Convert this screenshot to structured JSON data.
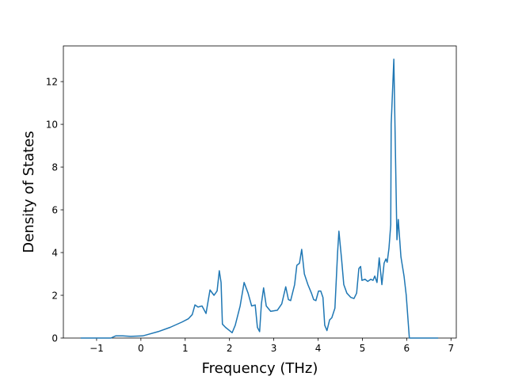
{
  "chart_data": {
    "type": "line",
    "xlabel": "Frequency (THz)",
    "ylabel": "Density of States",
    "x": [
      -1.36,
      -0.68,
      -0.57,
      -0.41,
      -0.23,
      0.04,
      0.13,
      0.39,
      0.66,
      0.93,
      1.07,
      1.16,
      1.22,
      1.29,
      1.38,
      1.47,
      1.56,
      1.65,
      1.72,
      1.77,
      1.81,
      1.84,
      1.91,
      2.0,
      2.06,
      2.13,
      2.24,
      2.33,
      2.42,
      2.5,
      2.58,
      2.63,
      2.68,
      2.72,
      2.77,
      2.83,
      2.93,
      3.08,
      3.18,
      3.27,
      3.33,
      3.38,
      3.47,
      3.52,
      3.58,
      3.63,
      3.69,
      3.77,
      3.85,
      3.9,
      3.95,
      4.01,
      4.06,
      4.11,
      4.15,
      4.2,
      4.26,
      4.31,
      4.38,
      4.44,
      4.47,
      4.53,
      4.58,
      4.65,
      4.74,
      4.81,
      4.87,
      4.92,
      4.96,
      4.99,
      5.06,
      5.12,
      5.19,
      5.24,
      5.28,
      5.33,
      5.38,
      5.44,
      5.49,
      5.53,
      5.56,
      5.6,
      5.64,
      5.65,
      5.71,
      5.76,
      5.78,
      5.81,
      5.87,
      5.94,
      5.99,
      6.06,
      6.3,
      6.71
    ],
    "values": [
      0,
      0,
      0.1,
      0.1,
      0.08,
      0.1,
      0.15,
      0.3,
      0.5,
      0.75,
      0.9,
      1.1,
      1.55,
      1.45,
      1.5,
      1.15,
      2.25,
      2.0,
      2.2,
      3.15,
      2.6,
      0.65,
      0.5,
      0.35,
      0.25,
      0.6,
      1.5,
      2.6,
      2.1,
      1.5,
      1.55,
      0.5,
      0.3,
      1.6,
      2.35,
      1.5,
      1.25,
      1.3,
      1.6,
      2.4,
      1.8,
      1.75,
      2.5,
      3.4,
      3.5,
      4.15,
      3.0,
      2.5,
      2.1,
      1.8,
      1.75,
      2.2,
      2.2,
      1.9,
      0.6,
      0.35,
      0.85,
      0.95,
      1.4,
      4.0,
      5.0,
      3.7,
      2.5,
      2.1,
      1.9,
      1.85,
      2.1,
      3.25,
      3.35,
      2.7,
      2.75,
      2.65,
      2.75,
      2.7,
      2.9,
      2.6,
      3.75,
      2.5,
      3.5,
      3.7,
      3.55,
      4.2,
      5.3,
      10.0,
      13.05,
      7.0,
      4.6,
      5.55,
      3.8,
      2.9,
      2.0,
      0,
      0,
      0
    ],
    "color": "#1f77b4",
    "xlim": [
      -1.75,
      7.12
    ],
    "ylim": [
      0,
      13.67
    ],
    "xticks": [
      {
        "value": -1,
        "label": "−1"
      },
      0,
      1,
      2,
      3,
      4,
      5,
      6,
      7
    ],
    "yticks": [
      0,
      2,
      4,
      6,
      8,
      10,
      12
    ]
  }
}
